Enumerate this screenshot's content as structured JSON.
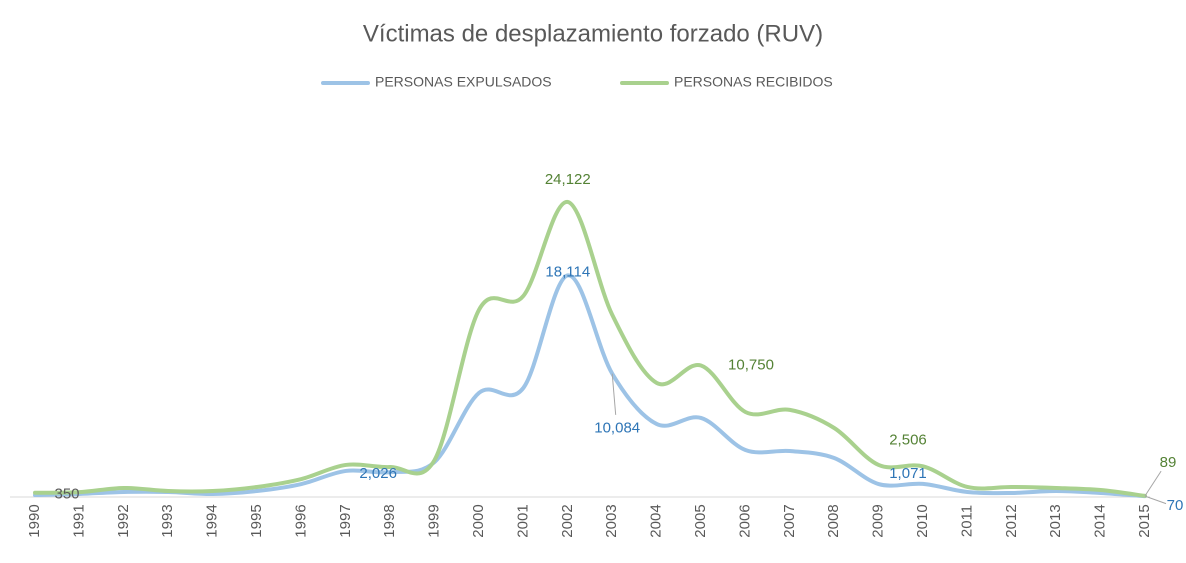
{
  "chart_data": {
    "type": "line",
    "title": "Víctimas de desplazamiento forzado (RUV)",
    "categories": [
      "1990",
      "1991",
      "1992",
      "1993",
      "1994",
      "1995",
      "1996",
      "1997",
      "1998",
      "1999",
      "2000",
      "2001",
      "2002",
      "2003",
      "2004",
      "2005",
      "2006",
      "2007",
      "2008",
      "2009",
      "2010",
      "2011",
      "2012",
      "2013",
      "2014",
      "2015"
    ],
    "ylim": [
      0,
      30000
    ],
    "legend": "top",
    "series": [
      {
        "name": "PERSONAS EXPULSADOS",
        "color": "#9dc3e6",
        "values": [
          160,
          250,
          410,
          410,
          250,
          490,
          1060,
          2130,
          2026,
          2860,
          8510,
          8920,
          18114,
          10084,
          5970,
          6460,
          3840,
          3760,
          3190,
          1060,
          1071,
          410,
          330,
          490,
          330,
          70
        ],
        "value_labels": [
          null,
          null,
          null,
          null,
          null,
          null,
          null,
          null,
          "2,026",
          null,
          null,
          null,
          "18,114",
          "10,084",
          null,
          null,
          null,
          null,
          null,
          null,
          "1,071",
          null,
          null,
          null,
          null,
          "70"
        ]
      },
      {
        "name": "PERSONAS RECIBIDOS",
        "color": "#a9d18e",
        "values": [
          350,
          400,
          740,
          490,
          490,
          820,
          1470,
          2620,
          2450,
          3030,
          15300,
          16440,
          24122,
          14900,
          9330,
          10750,
          6950,
          7120,
          5640,
          2620,
          2506,
          820,
          820,
          740,
          570,
          89
        ],
        "value_labels": [
          "350",
          null,
          null,
          null,
          null,
          null,
          null,
          null,
          null,
          null,
          null,
          null,
          "24,122",
          null,
          null,
          "10,750",
          null,
          null,
          null,
          null,
          "2,506",
          null,
          null,
          null,
          null,
          "89"
        ]
      }
    ]
  }
}
